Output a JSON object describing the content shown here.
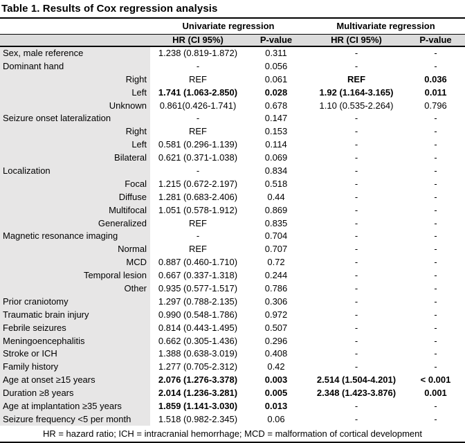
{
  "title": "Table 1. Results of Cox regression analysis",
  "header": {
    "group_univariate": "Univariate regression",
    "group_multivariate": "Multivariate regression",
    "columns": [
      "HR (CI 95%)",
      "P-value",
      "HR (CI 95%)",
      "P-value"
    ]
  },
  "rows": [
    {
      "label": "Sex, male reference",
      "indent": false,
      "cells": [
        "1.238 (0.819-1.872)",
        "0.311",
        "-",
        "-"
      ],
      "bold": [
        false,
        false,
        false,
        false
      ]
    },
    {
      "label": "Dominant hand",
      "indent": false,
      "cells": [
        "-",
        "0.056",
        "-",
        "-"
      ],
      "bold": [
        false,
        false,
        false,
        false
      ]
    },
    {
      "label": "Right",
      "indent": true,
      "cells": [
        "REF",
        "0.061",
        "REF",
        "0.036"
      ],
      "bold": [
        false,
        false,
        true,
        true
      ]
    },
    {
      "label": "Left",
      "indent": true,
      "cells": [
        "1.741 (1.063-2.850)",
        "0.028",
        "1.92 (1.164-3.165)",
        "0.011"
      ],
      "bold": [
        true,
        true,
        true,
        true
      ]
    },
    {
      "label": "Unknown",
      "indent": true,
      "cells": [
        "0.861(0.426-1.741)",
        "0.678",
        "1.10 (0.535-2.264)",
        "0.796"
      ],
      "bold": [
        false,
        false,
        false,
        false
      ]
    },
    {
      "label": "Seizure onset lateralization",
      "indent": false,
      "cells": [
        "-",
        "0.147",
        "-",
        "-"
      ],
      "bold": [
        false,
        false,
        false,
        false
      ]
    },
    {
      "label": "Right",
      "indent": true,
      "cells": [
        "REF",
        "0.153",
        "-",
        "-"
      ],
      "bold": [
        false,
        false,
        false,
        false
      ]
    },
    {
      "label": "Left",
      "indent": true,
      "cells": [
        "0.581 (0.296-1.139)",
        "0.114",
        "-",
        "-"
      ],
      "bold": [
        false,
        false,
        false,
        false
      ]
    },
    {
      "label": "Bilateral",
      "indent": true,
      "cells": [
        "0.621 (0.371-1.038)",
        "0.069",
        "-",
        "-"
      ],
      "bold": [
        false,
        false,
        false,
        false
      ]
    },
    {
      "label": "Localization",
      "indent": false,
      "cells": [
        "-",
        "0.834",
        "-",
        "-"
      ],
      "bold": [
        false,
        false,
        false,
        false
      ]
    },
    {
      "label": "Focal",
      "indent": true,
      "cells": [
        "1.215 (0.672-2.197)",
        "0.518",
        "-",
        "-"
      ],
      "bold": [
        false,
        false,
        false,
        false
      ]
    },
    {
      "label": "Diffuse",
      "indent": true,
      "cells": [
        "1.281 (0.683-2.406)",
        "0.44",
        "-",
        "-"
      ],
      "bold": [
        false,
        false,
        false,
        false
      ]
    },
    {
      "label": "Multifocal",
      "indent": true,
      "cells": [
        "1.051 (0.578-1.912)",
        "0.869",
        "-",
        "-"
      ],
      "bold": [
        false,
        false,
        false,
        false
      ]
    },
    {
      "label": "Generalized",
      "indent": true,
      "cells": [
        "REF",
        "0.835",
        "-",
        "-"
      ],
      "bold": [
        false,
        false,
        false,
        false
      ]
    },
    {
      "label": "Magnetic resonance imaging",
      "indent": false,
      "cells": [
        "-",
        "0.704",
        "-",
        "-"
      ],
      "bold": [
        false,
        false,
        false,
        false
      ]
    },
    {
      "label": "Normal",
      "indent": true,
      "cells": [
        "REF",
        "0.707",
        "-",
        "-"
      ],
      "bold": [
        false,
        false,
        false,
        false
      ]
    },
    {
      "label": "MCD",
      "indent": true,
      "cells": [
        "0.887 (0.460-1.710)",
        "0.72",
        "-",
        "-"
      ],
      "bold": [
        false,
        false,
        false,
        false
      ]
    },
    {
      "label": "Temporal lesion",
      "indent": true,
      "cells": [
        "0.667 (0.337-1.318)",
        "0.244",
        "-",
        "-"
      ],
      "bold": [
        false,
        false,
        false,
        false
      ]
    },
    {
      "label": "Other",
      "indent": true,
      "cells": [
        "0.935 (0.577-1.517)",
        "0.786",
        "-",
        "-"
      ],
      "bold": [
        false,
        false,
        false,
        false
      ]
    },
    {
      "label": "Prior craniotomy",
      "indent": false,
      "cells": [
        "1.297 (0.788-2.135)",
        "0.306",
        "-",
        "-"
      ],
      "bold": [
        false,
        false,
        false,
        false
      ]
    },
    {
      "label": "Traumatic brain injury",
      "indent": false,
      "cells": [
        "0.990 (0.548-1.786)",
        "0.972",
        "-",
        "-"
      ],
      "bold": [
        false,
        false,
        false,
        false
      ]
    },
    {
      "label": "Febrile seizures",
      "indent": false,
      "cells": [
        "0.814 (0.443-1.495)",
        "0.507",
        "-",
        "-"
      ],
      "bold": [
        false,
        false,
        false,
        false
      ]
    },
    {
      "label": "Meningoencephalitis",
      "indent": false,
      "cells": [
        "0.662 (0.305-1.436)",
        "0.296",
        "-",
        "-"
      ],
      "bold": [
        false,
        false,
        false,
        false
      ]
    },
    {
      "label": "Stroke or ICH",
      "indent": false,
      "cells": [
        "1.388 (0.638-3.019)",
        "0.408",
        "-",
        "-"
      ],
      "bold": [
        false,
        false,
        false,
        false
      ]
    },
    {
      "label": "Family history",
      "indent": false,
      "cells": [
        "1.277 (0.705-2.312)",
        "0.42",
        "-",
        "-"
      ],
      "bold": [
        false,
        false,
        false,
        false
      ]
    },
    {
      "label": "Age at onset ≥15 years",
      "indent": false,
      "cells": [
        "2.076 (1.276-3.378)",
        "0.003",
        "2.514 (1.504-4.201)",
        "< 0.001"
      ],
      "bold": [
        true,
        true,
        true,
        true
      ]
    },
    {
      "label": "Duration ≥8 years",
      "indent": false,
      "cells": [
        "2.014 (1.236-3.281)",
        "0.005",
        "2.348 (1.423-3.876)",
        "0.001"
      ],
      "bold": [
        true,
        true,
        true,
        true
      ]
    },
    {
      "label": "Age at implantation ≥35 years",
      "indent": false,
      "cells": [
        "1.859 (1.141-3.030)",
        "0.013",
        "-",
        "-"
      ],
      "bold": [
        true,
        true,
        false,
        false
      ]
    },
    {
      "label": "Seizure frequency <5 per month",
      "indent": false,
      "cells": [
        "1.518 (0.982-2.345)",
        "0.06",
        "-",
        "-"
      ],
      "bold": [
        false,
        false,
        false,
        false
      ]
    }
  ],
  "footnote": "HR = hazard ratio; ICH = intracranial hemorrhage; MCD = malformation of cortical development",
  "colors": {
    "border": "#000000",
    "subheader_bg": "#dcdcdc",
    "label_column_bg": "#e7e6e6"
  }
}
